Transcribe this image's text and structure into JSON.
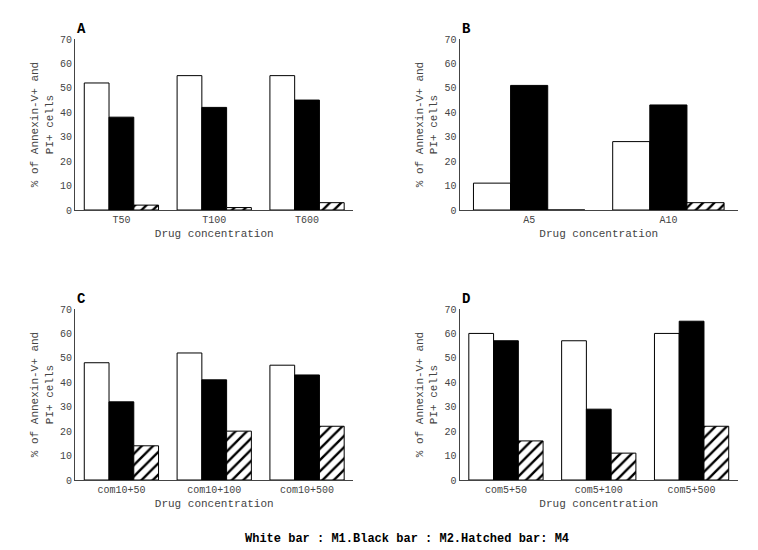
{
  "chart_data": [
    {
      "type": "bar",
      "title": "A",
      "categories": [
        "T50",
        "T100",
        "T600"
      ],
      "series": [
        {
          "color": "white",
          "values": [
            52,
            55,
            55
          ]
        },
        {
          "color": "black",
          "values": [
            38,
            42,
            45
          ]
        },
        {
          "color": "white",
          "marker": "hatched",
          "values": [
            2,
            1,
            3
          ]
        }
      ],
      "xlabel": "Drug concentration",
      "ylabel": "% of Annexin-V+ and\nPI+ cells",
      "ylim": [
        0,
        70
      ],
      "yticks": [
        0,
        10,
        20,
        30,
        40,
        50,
        60,
        70
      ],
      "grid": false
    },
    {
      "type": "bar",
      "title": "B",
      "categories": [
        "A5",
        "A10"
      ],
      "series": [
        {
          "color": "white",
          "values": [
            11,
            28
          ]
        },
        {
          "color": "black",
          "values": [
            51,
            43
          ]
        },
        {
          "color": "white",
          "marker": "hatched",
          "values": [
            0,
            3
          ]
        }
      ],
      "xlabel": "Drug concentration",
      "ylabel": "% of Annexin-V+ and\nPI+ cells",
      "ylim": [
        0,
        70
      ],
      "yticks": [
        0,
        10,
        20,
        30,
        40,
        50,
        60,
        70
      ],
      "grid": false
    },
    {
      "type": "bar",
      "title": "C",
      "categories": [
        "com10+50",
        "com10+100",
        "com10+500"
      ],
      "series": [
        {
          "color": "white",
          "values": [
            48,
            52,
            47
          ]
        },
        {
          "color": "black",
          "values": [
            32,
            41,
            43
          ]
        },
        {
          "color": "white",
          "marker": "hatched",
          "values": [
            14,
            20,
            22
          ]
        }
      ],
      "xlabel": "Drug concentration",
      "ylabel": "% of Annexin-V+ and\nPI+ cells",
      "ylim": [
        0,
        70
      ],
      "yticks": [
        0,
        10,
        20,
        30,
        40,
        50,
        60,
        70
      ],
      "grid": false
    },
    {
      "type": "bar",
      "title": "D",
      "categories": [
        "com5+50",
        "com5+100",
        "com5+500"
      ],
      "series": [
        {
          "color": "white",
          "values": [
            60,
            57,
            60
          ]
        },
        {
          "color": "black",
          "values": [
            57,
            29,
            65
          ]
        },
        {
          "color": "white",
          "marker": "hatched",
          "values": [
            16,
            11,
            22
          ]
        }
      ],
      "xlabel": "Drug concentration",
      "ylabel": "% of Annexin-V+ and\nPI+ cells",
      "ylim": [
        0,
        70
      ],
      "yticks": [
        0,
        10,
        20,
        30,
        40,
        50,
        60,
        70
      ],
      "grid": false
    }
  ],
  "annotations": [
    "White bar : M1.Black bar : M2.Hatched bar: M4"
  ]
}
